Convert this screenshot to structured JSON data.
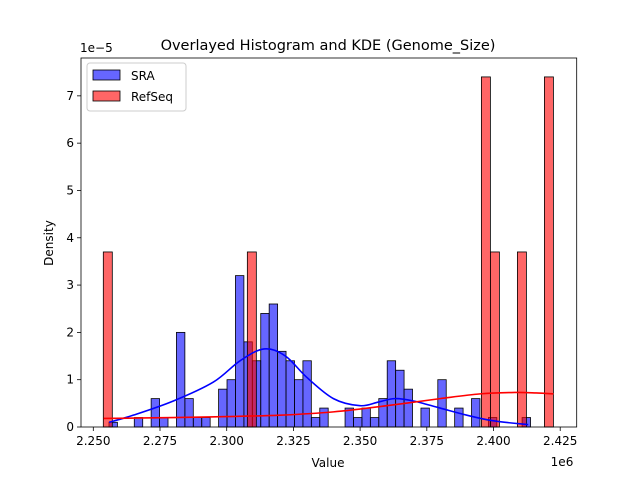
{
  "chart_data": {
    "type": "histogram+kde",
    "title": "Overlayed Histogram and KDE (Genome_Size)",
    "xlabel": "Value",
    "ylabel": "Density",
    "x_offset_label": "1e6",
    "y_offset_label": "1e−5",
    "xlim": [
      2.24539,
      2.43118
    ],
    "ylim": [
      0,
      7.8
    ],
    "xticks": [
      2.25,
      2.275,
      2.3,
      2.325,
      2.35,
      2.375,
      2.4,
      2.425
    ],
    "xtick_labels": [
      "2.250",
      "2.275",
      "2.300",
      "2.325",
      "2.350",
      "2.375",
      "2.400",
      "2.425"
    ],
    "yticks": [
      0,
      1,
      2,
      3,
      4,
      5,
      6,
      7
    ],
    "ytick_labels": [
      "0",
      "1",
      "2",
      "3",
      "4",
      "5",
      "6",
      "7"
    ],
    "legend_placement": "top-left",
    "series": [
      {
        "name": "SRA",
        "color": "#0000ff",
        "bin_start": 2.25588,
        "bin_width": 0.00316,
        "densities": [
          0.1,
          0,
          0,
          0.2,
          0,
          0.6,
          0.2,
          0,
          2.0,
          0.6,
          0.2,
          0.2,
          0,
          0.8,
          1.0,
          3.2,
          1.8,
          1.4,
          2.4,
          2.6,
          1.6,
          1.4,
          1.0,
          1.4,
          0.2,
          0.4,
          0,
          0,
          0.4,
          0.2,
          0.4,
          0.2,
          0.6,
          1.4,
          1.2,
          0.8,
          0,
          0.4,
          0,
          1.0,
          0,
          0.4,
          0,
          0.6,
          0,
          0.2,
          0,
          0,
          0,
          0.2
        ],
        "kde": [
          [
            2.2559,
            0.1
          ],
          [
            2.265,
            0.25
          ],
          [
            2.28,
            0.55
          ],
          [
            2.295,
            0.95
          ],
          [
            2.305,
            1.4
          ],
          [
            2.314,
            1.65
          ],
          [
            2.322,
            1.5
          ],
          [
            2.33,
            1.05
          ],
          [
            2.34,
            0.6
          ],
          [
            2.35,
            0.45
          ],
          [
            2.357,
            0.53
          ],
          [
            2.363,
            0.6
          ],
          [
            2.37,
            0.55
          ],
          [
            2.38,
            0.4
          ],
          [
            2.39,
            0.25
          ],
          [
            2.4,
            0.13
          ],
          [
            2.413,
            0.05
          ]
        ]
      },
      {
        "name": "RefSeq",
        "color": "#ff0000",
        "bin_start": 2.25375,
        "bin_width": 0.003374,
        "densities": [
          3.7,
          0,
          0,
          0,
          0,
          0,
          0,
          0,
          0,
          0,
          0,
          0,
          0,
          0,
          0,
          0,
          3.7,
          0,
          0,
          0,
          0,
          0,
          0,
          0,
          0,
          0,
          0,
          0,
          0,
          0,
          0,
          0,
          0,
          0,
          0,
          0,
          0,
          0,
          0,
          0,
          0,
          0,
          7.4,
          3.7,
          0,
          0,
          3.7,
          0,
          0,
          7.4
        ],
        "kde": [
          [
            2.2538,
            0.18
          ],
          [
            2.28,
            0.2
          ],
          [
            2.3,
            0.22
          ],
          [
            2.32,
            0.25
          ],
          [
            2.34,
            0.32
          ],
          [
            2.36,
            0.45
          ],
          [
            2.38,
            0.6
          ],
          [
            2.395,
            0.7
          ],
          [
            2.408,
            0.73
          ],
          [
            2.416,
            0.72
          ],
          [
            2.4225,
            0.7
          ]
        ]
      }
    ]
  }
}
